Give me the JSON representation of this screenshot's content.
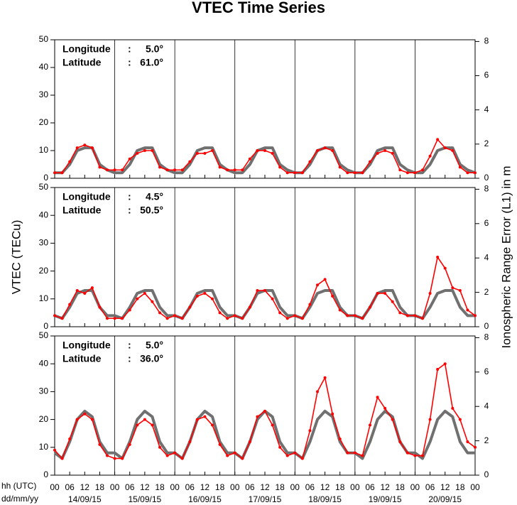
{
  "chart_data": [
    {
      "type": "line",
      "title": "VTEC Time Series",
      "location": [
        [
          "Longitude",
          ":",
          "5.0°"
        ],
        [
          "Latitude",
          ":",
          "61.0°"
        ]
      ],
      "x": [
        0,
        3,
        6,
        9,
        12,
        15,
        18,
        21,
        24,
        27,
        30,
        33,
        36,
        39,
        42,
        45,
        48,
        51,
        54,
        57,
        60,
        63,
        66,
        69,
        72,
        75,
        78,
        81,
        84,
        87,
        90,
        93,
        96,
        99,
        102,
        105,
        108,
        111,
        114,
        117,
        120,
        123,
        126,
        129,
        132,
        135,
        138,
        141,
        144,
        147,
        150,
        153,
        156,
        159,
        162,
        165,
        168
      ],
      "xlim": [
        0,
        168
      ],
      "ylim": [
        0,
        50
      ],
      "yticks": [
        0,
        10,
        20,
        30,
        40,
        50
      ],
      "y2lim": [
        0,
        8.1
      ],
      "y2ticks": [
        0,
        2,
        4,
        6,
        8
      ],
      "series": [
        {
          "color": "#707070",
          "values": [
            2,
            2,
            5,
            10,
            11,
            11,
            5,
            3,
            2,
            2,
            5,
            10,
            11,
            11,
            5,
            3,
            2,
            2,
            5,
            10,
            11,
            11,
            5,
            3,
            2,
            2,
            5,
            10,
            11,
            11,
            5,
            3,
            2,
            2,
            5,
            10,
            11,
            11,
            5,
            3,
            2,
            2,
            5,
            10,
            11,
            11,
            5,
            3,
            2,
            2,
            5,
            10,
            11,
            11,
            5,
            3,
            2
          ]
        },
        {
          "color": "#ff0000",
          "values": [
            2,
            2,
            6,
            11,
            12,
            11,
            4,
            3,
            3,
            3,
            7,
            9,
            10,
            10,
            4,
            3,
            3,
            3,
            6,
            9,
            9,
            10,
            4,
            3,
            3,
            3,
            7,
            10,
            10,
            9,
            4,
            2,
            2,
            2,
            6,
            10,
            11,
            10,
            4,
            2,
            2,
            2,
            6,
            9,
            10,
            9,
            3,
            2,
            2,
            3,
            8,
            14,
            11,
            10,
            4,
            2,
            2
          ]
        }
      ]
    },
    {
      "type": "line",
      "ylabel": "VTEC (TECu)",
      "y2label": "Ionospheric Range Error (L1) in m",
      "location": [
        [
          "Longitude",
          ":",
          "4.5°"
        ],
        [
          "Latitude",
          ":",
          "50.5°"
        ]
      ],
      "x": [
        0,
        3,
        6,
        9,
        12,
        15,
        18,
        21,
        24,
        27,
        30,
        33,
        36,
        39,
        42,
        45,
        48,
        51,
        54,
        57,
        60,
        63,
        66,
        69,
        72,
        75,
        78,
        81,
        84,
        87,
        90,
        93,
        96,
        99,
        102,
        105,
        108,
        111,
        114,
        117,
        120,
        123,
        126,
        129,
        132,
        135,
        138,
        141,
        144,
        147,
        150,
        153,
        156,
        159,
        162,
        165,
        168
      ],
      "xlim": [
        0,
        168
      ],
      "ylim": [
        0,
        50
      ],
      "yticks": [
        0,
        10,
        20,
        30,
        40,
        50
      ],
      "y2lim": [
        0,
        8.1
      ],
      "y2ticks": [
        0,
        2,
        4,
        6,
        8
      ],
      "series": [
        {
          "color": "#707070",
          "values": [
            4,
            3,
            7,
            12,
            13,
            13,
            7,
            4,
            4,
            3,
            7,
            12,
            13,
            13,
            7,
            4,
            4,
            3,
            7,
            12,
            13,
            13,
            7,
            4,
            4,
            3,
            7,
            12,
            13,
            13,
            7,
            4,
            4,
            3,
            7,
            12,
            13,
            13,
            7,
            4,
            4,
            3,
            7,
            12,
            13,
            13,
            7,
            4,
            4,
            3,
            7,
            12,
            13,
            13,
            7,
            4,
            4
          ]
        },
        {
          "color": "#ff0000",
          "values": [
            4,
            3,
            8,
            13,
            12,
            14,
            7,
            3,
            3,
            3,
            6,
            10,
            12,
            9,
            5,
            3,
            4,
            3,
            7,
            11,
            12,
            10,
            5,
            3,
            4,
            3,
            7,
            13,
            13,
            10,
            5,
            3,
            4,
            3,
            8,
            15,
            17,
            11,
            6,
            4,
            4,
            3,
            7,
            12,
            12,
            9,
            5,
            4,
            4,
            3,
            12,
            25,
            21,
            14,
            13,
            6,
            4
          ]
        }
      ]
    },
    {
      "type": "line",
      "xlabel": "hh (UTC)",
      "xlabel2": "dd/mm/yy",
      "location": [
        [
          "Longitude",
          ":",
          "5.0°"
        ],
        [
          "Latitude",
          ":",
          "36.0°"
        ]
      ],
      "x": [
        0,
        3,
        6,
        9,
        12,
        15,
        18,
        21,
        24,
        27,
        30,
        33,
        36,
        39,
        42,
        45,
        48,
        51,
        54,
        57,
        60,
        63,
        66,
        69,
        72,
        75,
        78,
        81,
        84,
        87,
        90,
        93,
        96,
        99,
        102,
        105,
        108,
        111,
        114,
        117,
        120,
        123,
        126,
        129,
        132,
        135,
        138,
        141,
        144,
        147,
        150,
        153,
        156,
        159,
        162,
        165,
        168
      ],
      "xlim": [
        0,
        168
      ],
      "ylim": [
        0,
        50
      ],
      "yticks": [
        0,
        10,
        20,
        30,
        40,
        50
      ],
      "y2lim": [
        0,
        8.1
      ],
      "y2ticks": [
        0,
        2,
        4,
        6,
        8
      ],
      "xticks": [
        {
          "value": 0,
          "label": "00"
        },
        {
          "value": 6,
          "label": "06"
        },
        {
          "value": 12,
          "label": "12"
        },
        {
          "value": 18,
          "label": "18"
        },
        {
          "value": 24,
          "label": "00"
        },
        {
          "value": 30,
          "label": "06"
        },
        {
          "value": 36,
          "label": "12"
        },
        {
          "value": 42,
          "label": "18"
        },
        {
          "value": 48,
          "label": "00"
        },
        {
          "value": 54,
          "label": "06"
        },
        {
          "value": 60,
          "label": "12"
        },
        {
          "value": 66,
          "label": "18"
        },
        {
          "value": 72,
          "label": "00"
        },
        {
          "value": 78,
          "label": "06"
        },
        {
          "value": 84,
          "label": "12"
        },
        {
          "value": 90,
          "label": "18"
        },
        {
          "value": 96,
          "label": "00"
        },
        {
          "value": 102,
          "label": "06"
        },
        {
          "value": 108,
          "label": "12"
        },
        {
          "value": 114,
          "label": "18"
        },
        {
          "value": 120,
          "label": "00"
        },
        {
          "value": 126,
          "label": "06"
        },
        {
          "value": 132,
          "label": "12"
        },
        {
          "value": 138,
          "label": "18"
        },
        {
          "value": 144,
          "label": "00"
        },
        {
          "value": 150,
          "label": "06"
        },
        {
          "value": 156,
          "label": "12"
        },
        {
          "value": 162,
          "label": "18"
        },
        {
          "value": 168,
          "label": "00"
        }
      ],
      "xgroups": [
        {
          "value": 12,
          "label": "14/09/15"
        },
        {
          "value": 36,
          "label": "15/09/15"
        },
        {
          "value": 60,
          "label": "16/09/15"
        },
        {
          "value": 84,
          "label": "17/09/15"
        },
        {
          "value": 108,
          "label": "18/09/15"
        },
        {
          "value": 132,
          "label": "19/09/15"
        },
        {
          "value": 156,
          "label": "20/09/15"
        }
      ],
      "series": [
        {
          "color": "#707070",
          "values": [
            8,
            6,
            12,
            20,
            23,
            21,
            12,
            8,
            8,
            6,
            12,
            20,
            23,
            21,
            12,
            8,
            8,
            6,
            12,
            20,
            23,
            21,
            12,
            8,
            8,
            6,
            12,
            20,
            23,
            21,
            12,
            8,
            8,
            6,
            12,
            20,
            23,
            21,
            12,
            8,
            8,
            6,
            12,
            20,
            23,
            21,
            12,
            8,
            8,
            6,
            12,
            20,
            23,
            21,
            12,
            8,
            8
          ]
        },
        {
          "color": "#ff0000",
          "values": [
            9,
            6,
            13,
            20,
            22,
            20,
            11,
            7,
            6,
            6,
            11,
            18,
            20,
            18,
            10,
            7,
            8,
            6,
            12,
            20,
            21,
            18,
            11,
            7,
            8,
            6,
            12,
            21,
            23,
            18,
            10,
            7,
            8,
            6,
            16,
            30,
            35,
            22,
            13,
            8,
            8,
            7,
            18,
            28,
            24,
            20,
            12,
            8,
            7,
            7,
            20,
            38,
            40,
            24,
            20,
            12,
            10
          ]
        }
      ]
    }
  ]
}
